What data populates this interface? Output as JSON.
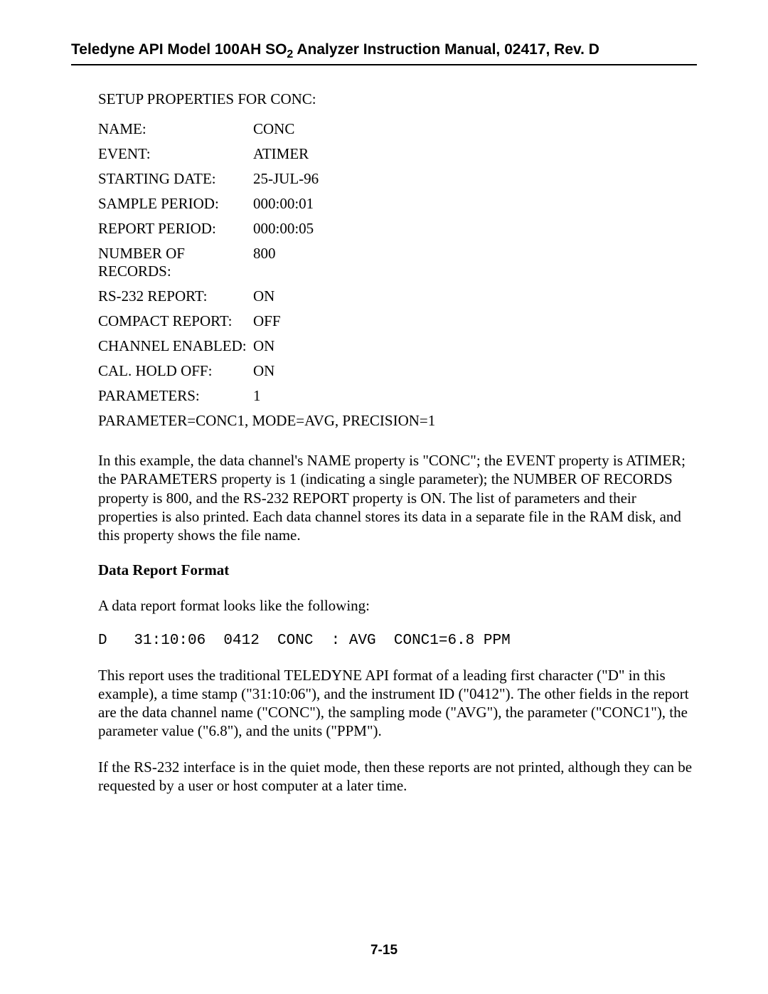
{
  "header": {
    "title_part1": "Teledyne API Model 100AH SO",
    "title_sub": "2",
    "title_part2": " Analyzer Instruction Manual, 02417, Rev. D"
  },
  "properties": {
    "title": "SETUP PROPERTIES FOR CONC:",
    "rows": [
      {
        "label": "NAME:",
        "value": "CONC"
      },
      {
        "label": "EVENT:",
        "value": "ATIMER"
      },
      {
        "label": "STARTING DATE:",
        "value": "25-JUL-96"
      },
      {
        "label": "SAMPLE PERIOD:",
        "value": "000:00:01"
      },
      {
        "label": "REPORT PERIOD:",
        "value": "000:00:05"
      },
      {
        "label": "NUMBER OF RECORDS:",
        "value": "800"
      },
      {
        "label": "RS-232 REPORT:",
        "value": "ON"
      },
      {
        "label": "COMPACT REPORT:",
        "value": "OFF"
      },
      {
        "label": "CHANNEL ENABLED:",
        "value": "ON"
      },
      {
        "label": "CAL. HOLD OFF:",
        "value": "ON"
      },
      {
        "label": "PARAMETERS:",
        "value": "1"
      }
    ],
    "param_line": "PARAMETER=CONC1, MODE=AVG, PRECISION=1"
  },
  "paragraph1": "In this example, the data channel's NAME property is \"CONC\"; the EVENT property is ATIMER; the PARAMETERS property is 1 (indicating a single parameter); the NUMBER OF RECORDS property is 800, and the RS-232 REPORT property is ON. The list of parameters and their properties is also printed. Each data channel stores its data in a separate file in the RAM disk, and this property shows the file name.",
  "section_heading": "Data Report Format",
  "paragraph2": "A data report format looks like the following:",
  "code_example": "D   31:10:06  0412  CONC  : AVG  CONC1=6.8 PPM",
  "paragraph3": "This report uses the traditional TELEDYNE API format of a leading first character (\"D\" in this example), a time stamp (\"31:10:06\"), and the instrument ID (\"0412\"). The other fields in the report are the data channel name (\"CONC\"), the sampling mode (\"AVG\"), the parameter (\"CONC1\"), the parameter value (\"6.8\"), and the units (\"PPM\").",
  "paragraph4": "If the RS-232 interface is in the quiet mode, then these reports are not printed, although they can be requested by a user or host computer at a later time.",
  "page_number": "7-15"
}
